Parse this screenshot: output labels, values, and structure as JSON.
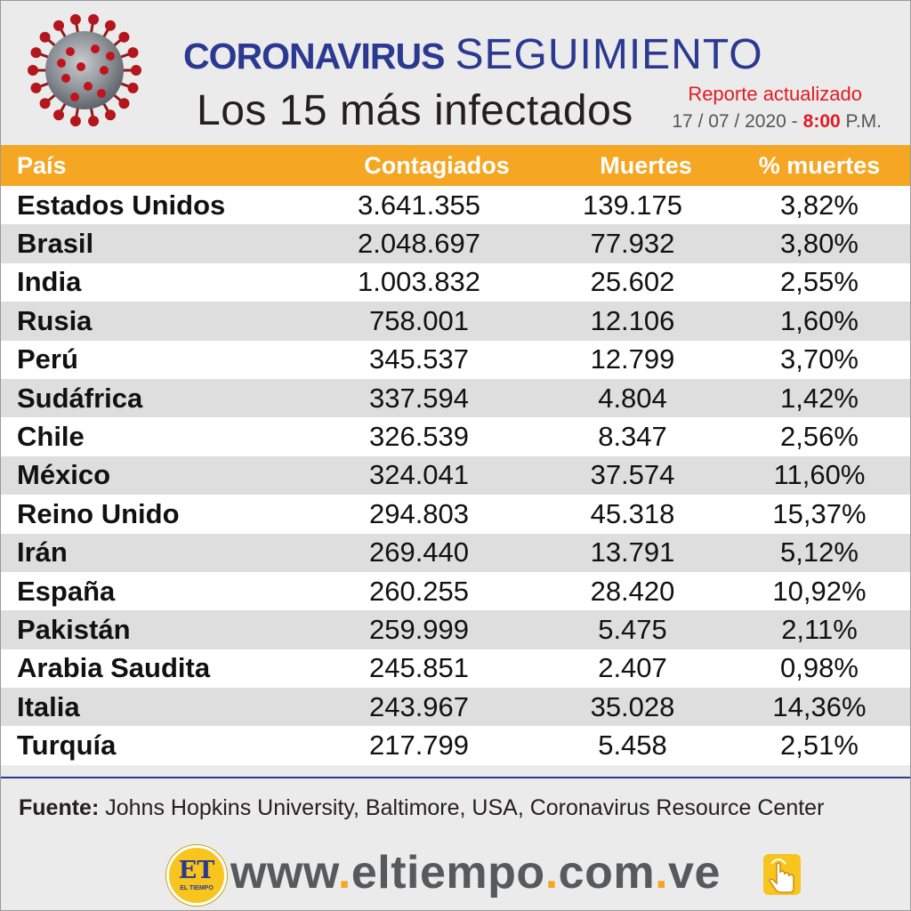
{
  "header": {
    "title_main": "Coronavirus",
    "title_second": "SEGUIMIENTO",
    "subtitle": "Los 15 más infectados",
    "report_label": "Reporte actualizado",
    "report_date": "17 / 07 / 2020 -",
    "report_time": "8:00",
    "report_ampm": "P.M."
  },
  "table": {
    "headers": [
      "País",
      "Contagiados",
      "Muertes",
      "% muertes"
    ],
    "rows": [
      {
        "country": "Estados Unidos",
        "cases": "3.641.355",
        "deaths": "139.175",
        "pct": "3,82%"
      },
      {
        "country": "Brasil",
        "cases": "2.048.697",
        "deaths": "77.932",
        "pct": "3,80%"
      },
      {
        "country": "India",
        "cases": "1.003.832",
        "deaths": "25.602",
        "pct": "2,55%"
      },
      {
        "country": "Rusia",
        "cases": "758.001",
        "deaths": "12.106",
        "pct": "1,60%"
      },
      {
        "country": "Perú",
        "cases": "345.537",
        "deaths": "12.799",
        "pct": "3,70%"
      },
      {
        "country": "Sudáfrica",
        "cases": "337.594",
        "deaths": "4.804",
        "pct": "1,42%"
      },
      {
        "country": "Chile",
        "cases": "326.539",
        "deaths": "8.347",
        "pct": "2,56%"
      },
      {
        "country": "México",
        "cases": "324.041",
        "deaths": "37.574",
        "pct": "11,60%"
      },
      {
        "country": "Reino Unido",
        "cases": "294.803",
        "deaths": "45.318",
        "pct": "15,37%"
      },
      {
        "country": "Irán",
        "cases": "269.440",
        "deaths": "13.791",
        "pct": "5,12%"
      },
      {
        "country": "España",
        "cases": "260.255",
        "deaths": "28.420",
        "pct": "10,92%"
      },
      {
        "country": "Pakistán",
        "cases": "259.999",
        "deaths": "5.475",
        "pct": "2,11%"
      },
      {
        "country": "Arabia Saudita",
        "cases": "245.851",
        "deaths": "2.407",
        "pct": "0,98%"
      },
      {
        "country": "Italia",
        "cases": "243.967",
        "deaths": "35.028",
        "pct": "14,36%"
      },
      {
        "country": "Turquía",
        "cases": "217.799",
        "deaths": "5.458",
        "pct": "2,51%"
      }
    ]
  },
  "chart_data": {
    "type": "table",
    "title": "Coronavirus SEGUIMIENTO",
    "subtitle": "Los 15 más infectados",
    "columns": [
      "País",
      "Contagiados",
      "Muertes",
      "% muertes"
    ],
    "rows": [
      [
        "Estados Unidos",
        3641355,
        139175,
        3.82
      ],
      [
        "Brasil",
        2048697,
        77932,
        3.8
      ],
      [
        "India",
        1003832,
        25602,
        2.55
      ],
      [
        "Rusia",
        758001,
        12106,
        1.6
      ],
      [
        "Perú",
        345537,
        12799,
        3.7
      ],
      [
        "Sudáfrica",
        337594,
        4804,
        1.42
      ],
      [
        "Chile",
        326539,
        8347,
        2.56
      ],
      [
        "México",
        324041,
        37574,
        11.6
      ],
      [
        "Reino Unido",
        294803,
        45318,
        15.37
      ],
      [
        "Irán",
        269440,
        13791,
        5.12
      ],
      [
        "España",
        260255,
        28420,
        10.92
      ],
      [
        "Pakistán",
        259999,
        5475,
        2.11
      ],
      [
        "Arabia Saudita",
        245851,
        2407,
        0.98
      ],
      [
        "Italia",
        243967,
        35028,
        14.36
      ],
      [
        "Turquía",
        217799,
        5458,
        2.51
      ]
    ]
  },
  "footer": {
    "source_label": "Fuente:",
    "source_text": "Johns Hopkins University, Baltimore, USA, Coronavirus Resource Center",
    "logo_text": "ET",
    "logo_sub": "EL TIEMPO",
    "url_parts": [
      "www",
      ".",
      "eltiempo",
      ".",
      "com",
      ".",
      "ve"
    ]
  },
  "colors": {
    "title_blue": "#2b3990",
    "header_orange": "#f5a623",
    "accent_red": "#e11b22",
    "row_alt": "#dedede"
  },
  "icons": [
    "virus-icon",
    "et-logo-icon",
    "tap-hand-icon"
  ]
}
